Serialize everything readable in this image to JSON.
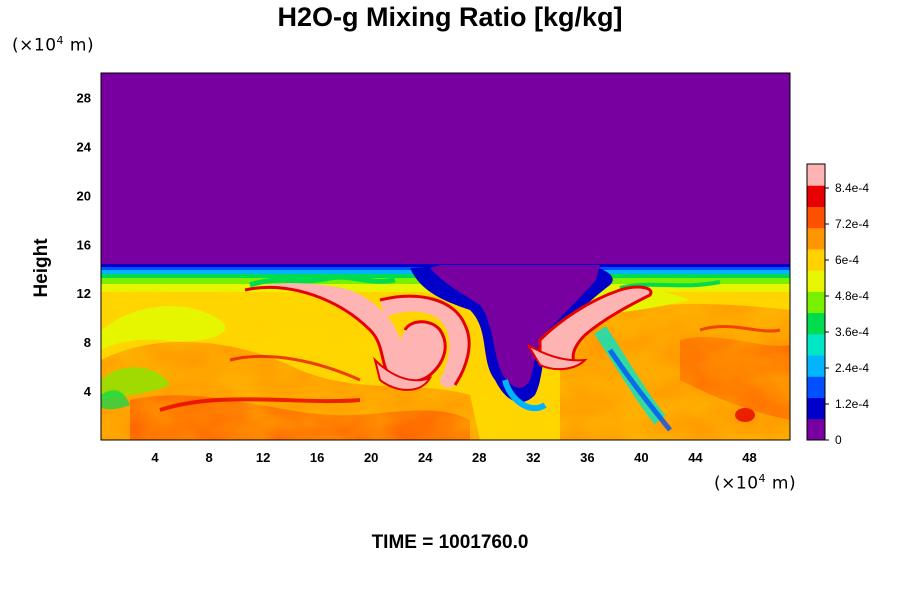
{
  "chart_data": {
    "type": "heatmap",
    "title": "H2O-g Mixing Ratio [kg/kg]",
    "ylabel": "Height",
    "x_unit_label": "(×10",
    "x_unit_exp": "4",
    "x_unit_suffix": " m)",
    "y_unit_label": "(×10",
    "y_unit_exp": "4",
    "y_unit_suffix": " m)",
    "xlim": [
      0,
      51
    ],
    "ylim": [
      0,
      30
    ],
    "x_ticks": [
      4,
      8,
      12,
      16,
      20,
      24,
      28,
      32,
      36,
      40,
      44,
      48
    ],
    "y_ticks": [
      4,
      8,
      12,
      16,
      20,
      24,
      28
    ],
    "colorbar": {
      "min": 0,
      "max": 0.00092,
      "labels": [
        "0",
        "1.2e-4",
        "2.4e-4",
        "3.6e-4",
        "4.8e-4",
        "6e-4",
        "7.2e-4",
        "8.4e-4"
      ],
      "label_values": [
        0,
        0.00012,
        0.00024,
        0.00036,
        0.00048,
        0.0006,
        0.00072,
        0.00084
      ],
      "colors": [
        "#7800a0",
        "#0000c8",
        "#0050ff",
        "#00b4ff",
        "#00e6c8",
        "#00dc50",
        "#78f000",
        "#e6f500",
        "#ffd200",
        "#ff9600",
        "#ff5000",
        "#e60000",
        "#ffb4b4"
      ]
    },
    "grid": false,
    "legend": "colorbar-right"
  },
  "footer": {
    "time_label": "TIME = 1001760.0"
  }
}
